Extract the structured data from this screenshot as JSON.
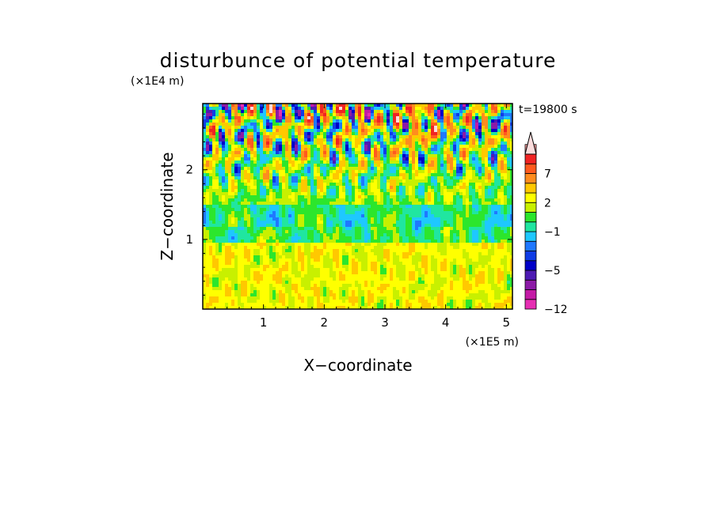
{
  "chart_data": {
    "type": "heatmap",
    "title": "disturbunce of potential temperature",
    "time_label": "t=19800 s",
    "xlabel": "X−coordinate",
    "ylabel": "Z−coordinate",
    "x_scale_label": "(×1E5 m)",
    "y_scale_label": "(×1E4 m)",
    "xlim": [
      0,
      5.1
    ],
    "ylim": [
      0,
      2.95
    ],
    "x_ticks": [
      "1",
      "2",
      "3",
      "4",
      "5"
    ],
    "x_tick_values": [
      1,
      2,
      3,
      4,
      5
    ],
    "y_ticks": [
      "1",
      "2"
    ],
    "y_tick_values": [
      1,
      2
    ],
    "colorbar": {
      "levels": [
        -12,
        -10,
        -8,
        -6,
        -5,
        -4,
        -3,
        -2,
        -1,
        0,
        1,
        2,
        3,
        5,
        7,
        9,
        12
      ],
      "colors": [
        "#e62eb3",
        "#c41aa6",
        "#8c1aa6",
        "#4d1ab3",
        "#0000c8",
        "#0f3ce6",
        "#1f78ff",
        "#1ec8ff",
        "#20e6a0",
        "#2ce62c",
        "#c8f000",
        "#ffff00",
        "#ffc800",
        "#ff8c1e",
        "#ff5a1e",
        "#f02323",
        "#f59a9a",
        "#fadcdc"
      ],
      "tick_labels": [
        "−12",
        "−5",
        "−1",
        "2",
        "7"
      ],
      "tick_values": [
        -12,
        -5,
        -1,
        2,
        7
      ],
      "extend": "max"
    }
  }
}
